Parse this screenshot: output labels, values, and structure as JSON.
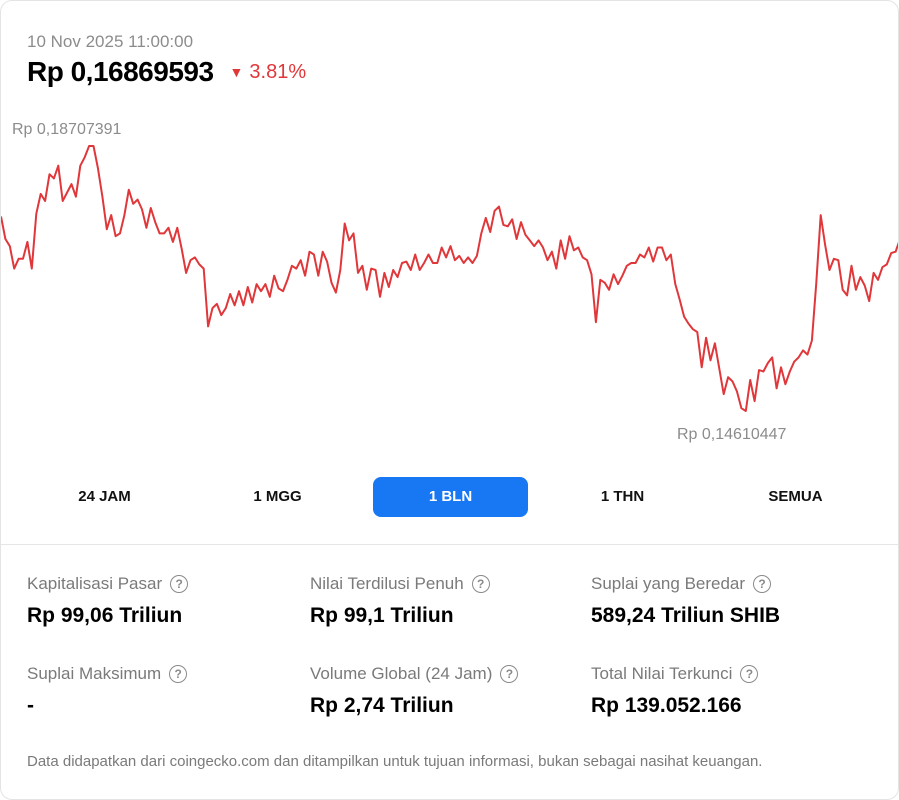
{
  "header": {
    "timestamp": "10 Nov 2025 11:00:00",
    "price": "Rp 0,16869593",
    "change_arrow": "▼",
    "change": "3.81%",
    "change_color": "#e0373a"
  },
  "chart_data": {
    "type": "line",
    "series": [
      {
        "color": "#e0373a",
        "values": [
          0.1702,
          0.1686,
          0.1681,
          0.1665,
          0.1672,
          0.1672,
          0.1684,
          0.1665,
          0.1704,
          0.1718,
          0.1713,
          0.1732,
          0.1729,
          0.1738,
          0.1713,
          0.1719,
          0.1725,
          0.1716,
          0.1738,
          0.1744,
          0.1752,
          0.1752,
          0.1736,
          0.1716,
          0.1693,
          0.1703,
          0.1688,
          0.169,
          0.1703,
          0.1721,
          0.1711,
          0.1714,
          0.1707,
          0.1694,
          0.1708,
          0.1698,
          0.169,
          0.169,
          0.1694,
          0.1684,
          0.1694,
          0.1679,
          0.1662,
          0.1671,
          0.1673,
          0.1668,
          0.1665,
          0.1624,
          0.1637,
          0.164,
          0.1632,
          0.1637,
          0.1647,
          0.1639,
          0.1649,
          0.1639,
          0.1652,
          0.1641,
          0.1654,
          0.1649,
          0.1654,
          0.1645,
          0.166,
          0.1651,
          0.1649,
          0.1657,
          0.1667,
          0.1665,
          0.1671,
          0.166,
          0.1677,
          0.1675,
          0.166,
          0.1677,
          0.167,
          0.1655,
          0.1648,
          0.1664,
          0.1697,
          0.1685,
          0.169,
          0.1662,
          0.1667,
          0.165,
          0.1665,
          0.1664,
          0.1645,
          0.1662,
          0.1652,
          0.1664,
          0.1659,
          0.1669,
          0.167,
          0.1664,
          0.1675,
          0.1664,
          0.1669,
          0.1675,
          0.1669,
          0.1669,
          0.168,
          0.1673,
          0.1681,
          0.1671,
          0.1674,
          0.1669,
          0.1673,
          0.1669,
          0.1674,
          0.169,
          0.1701,
          0.1691,
          0.1706,
          0.1709,
          0.1696,
          0.1695,
          0.17,
          0.1686,
          0.1698,
          0.1689,
          0.1685,
          0.1681,
          0.1685,
          0.168,
          0.1671,
          0.1677,
          0.1665,
          0.1685,
          0.1672,
          0.1688,
          0.1678,
          0.168,
          0.1673,
          0.1671,
          0.1661,
          0.1627,
          0.1657,
          0.1655,
          0.165,
          0.1661,
          0.1654,
          0.166,
          0.1667,
          0.1669,
          0.1669,
          0.1675,
          0.1673,
          0.168,
          0.167,
          0.168,
          0.168,
          0.1671,
          0.1675,
          0.1654,
          0.1643,
          0.1631,
          0.1626,
          0.1622,
          0.162,
          0.1595,
          0.1616,
          0.16,
          0.1612,
          0.1594,
          0.1576,
          0.1588,
          0.1585,
          0.1578,
          0.1566,
          0.1564,
          0.1586,
          0.1571,
          0.1593,
          0.1592,
          0.1598,
          0.1602,
          0.158,
          0.1595,
          0.1583,
          0.1592,
          0.1599,
          0.1602,
          0.1607,
          0.1604,
          0.1614,
          0.1655,
          0.1703,
          0.1682,
          0.1664,
          0.1672,
          0.1671,
          0.165,
          0.1646,
          0.1667,
          0.165,
          0.1659,
          0.1653,
          0.1642,
          0.1662,
          0.1657,
          0.1666,
          0.1668,
          0.1676,
          0.1677,
          0.1686
        ]
      }
    ],
    "high_label": "Rp 0,18707391",
    "low_label": "Rp 0,14610447"
  },
  "tabs": [
    {
      "label": "24 JAM"
    },
    {
      "label": "1 MGG"
    },
    {
      "label": "1 BLN",
      "active": true
    },
    {
      "label": "1 THN"
    },
    {
      "label": "SEMUA"
    }
  ],
  "stats": [
    {
      "label": "Kapitalisasi Pasar",
      "value": "Rp 99,06 Triliun"
    },
    {
      "label": "Nilai Terdilusi Penuh",
      "value": "Rp 99,1 Triliun"
    },
    {
      "label": "Suplai yang Beredar",
      "value": "589,24 Triliun SHIB"
    },
    {
      "label": "Suplai Maksimum",
      "value": "-"
    },
    {
      "label": "Volume Global (24 Jam)",
      "value": "Rp 2,74 Triliun"
    },
    {
      "label": "Total Nilai Terkunci",
      "value": "Rp 139.052.166"
    }
  ],
  "help_glyph": "?",
  "disclaimer": "Data didapatkan dari coingecko.com dan ditampilkan untuk tujuan informasi, bukan sebagai nasihat keuangan.",
  "colors": {
    "accent": "#1877f2",
    "line": "#e0373a"
  }
}
